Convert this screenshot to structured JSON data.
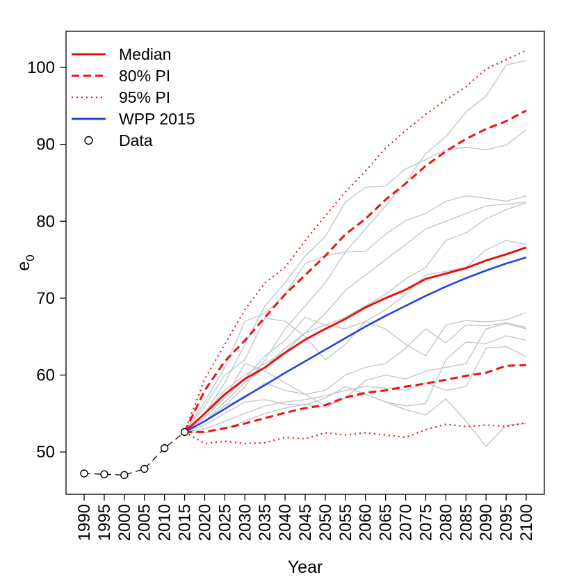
{
  "chart_data": {
    "type": "line",
    "title": "",
    "xlabel": "Year",
    "ylabel": "e",
    "ylabel_subscript": "0",
    "xlim": [
      1985.5,
      2104.5
    ],
    "ylim": [
      44.5,
      104.7
    ],
    "x_ticks": [
      1990,
      1995,
      2000,
      2005,
      2010,
      2015,
      2020,
      2025,
      2030,
      2035,
      2040,
      2045,
      2050,
      2055,
      2060,
      2065,
      2070,
      2075,
      2080,
      2085,
      2090,
      2095,
      2100
    ],
    "y_ticks": [
      50,
      60,
      70,
      80,
      90,
      100
    ],
    "legend_position": "top-left",
    "legend": [
      {
        "label": "Median",
        "style": "solid",
        "color": "#ee1111"
      },
      {
        "label": "80% PI",
        "style": "dashed",
        "color": "#ee1111"
      },
      {
        "label": "95% PI",
        "style": "dotted",
        "color": "#ee1111"
      },
      {
        "label": "WPP 2015",
        "style": "solid",
        "color": "#2244dd"
      },
      {
        "label": "Data",
        "style": "circle",
        "color": "#000000"
      }
    ],
    "data_points": {
      "x": [
        1990,
        1995,
        2000,
        2005,
        2010,
        2015
      ],
      "y": [
        47.2,
        47.1,
        47.0,
        47.8,
        50.5,
        52.6
      ]
    },
    "projection_x": [
      2015,
      2020,
      2025,
      2030,
      2035,
      2040,
      2045,
      2050,
      2055,
      2060,
      2065,
      2070,
      2075,
      2080,
      2085,
      2090,
      2095,
      2100
    ],
    "median": [
      52.6,
      55.0,
      57.5,
      59.5,
      61.0,
      62.9,
      64.6,
      66.0,
      67.3,
      68.8,
      70.0,
      71.1,
      72.5,
      73.2,
      73.9,
      74.9,
      75.7,
      76.6
    ],
    "wpp2015": [
      52.6,
      54.0,
      55.6,
      57.2,
      58.7,
      60.3,
      61.8,
      63.3,
      64.8,
      66.3,
      67.7,
      69.0,
      70.3,
      71.5,
      72.6,
      73.6,
      74.5,
      75.3
    ],
    "pi80_upper": [
      52.6,
      58.0,
      61.8,
      64.5,
      67.5,
      70.5,
      73.0,
      75.5,
      78.3,
      80.3,
      82.8,
      84.9,
      87.2,
      89.1,
      90.7,
      92.0,
      93.0,
      94.4
    ],
    "pi80_lower": [
      52.6,
      52.6,
      53.1,
      53.7,
      54.4,
      55.1,
      55.7,
      56.1,
      57.1,
      57.7,
      58.0,
      58.5,
      58.9,
      59.4,
      59.9,
      60.3,
      61.2,
      61.3
    ],
    "pi95_upper": [
      52.6,
      59.5,
      64.0,
      68.5,
      72.0,
      74.0,
      77.5,
      80.7,
      83.8,
      86.5,
      89.5,
      91.8,
      93.9,
      95.8,
      97.5,
      99.8,
      101.0,
      102.2
    ],
    "pi95_lower": [
      52.6,
      51.1,
      51.4,
      51.1,
      51.2,
      51.9,
      51.7,
      52.5,
      52.2,
      52.5,
      52.2,
      51.9,
      52.9,
      53.6,
      53.3,
      53.5,
      53.3,
      53.8
    ],
    "trajectories": [
      [
        52.6,
        55.0,
        59.0,
        64.0,
        69.0,
        72.0,
        75.5,
        78.0,
        82.5,
        84.4,
        84.6,
        86.8,
        88.0,
        89.3,
        89.6,
        89.3,
        89.9,
        91.9
      ],
      [
        52.6,
        54.0,
        56.0,
        58.5,
        62.0,
        66.0,
        69.0,
        72.0,
        76.0,
        79.0,
        82.0,
        85.0,
        88.8,
        91.0,
        94.2,
        96.3,
        100.3,
        100.9
      ],
      [
        52.6,
        56.5,
        61.0,
        67.0,
        68.0,
        70.5,
        74.5,
        75.5,
        76.0,
        76.1,
        78.3,
        80.1,
        81.0,
        82.6,
        83.3,
        83.0,
        82.6,
        83.3
      ],
      [
        52.6,
        55.0,
        58.0,
        60.0,
        61.5,
        63.0,
        65.5,
        68.0,
        71.0,
        73.0,
        75.0,
        77.0,
        79.0,
        80.0,
        81.0,
        82.0,
        82.2,
        82.5
      ],
      [
        52.6,
        54.0,
        56.5,
        59.0,
        61.0,
        63.5,
        65.5,
        66.5,
        67.5,
        69.0,
        70.5,
        72.5,
        74.0,
        77.5,
        78.5,
        80.3,
        81.5,
        82.4
      ],
      [
        52.6,
        54.5,
        57.0,
        59.5,
        62.5,
        64.5,
        67.5,
        66.5,
        66.0,
        67.0,
        68.5,
        70.5,
        73.0,
        73.5,
        74.0,
        76.3,
        77.5,
        77.0
      ],
      [
        52.6,
        56.0,
        60.0,
        62.0,
        67.4,
        67.0,
        65.0,
        62.0,
        64.0,
        67.0,
        66.0,
        64.0,
        62.5,
        66.5,
        67.1,
        66.9,
        67.2,
        68.1
      ],
      [
        52.6,
        55.0,
        57.0,
        61.5,
        60.5,
        59.0,
        57.5,
        58.0,
        60.0,
        61.0,
        61.5,
        63.5,
        66.0,
        64.2,
        66.5,
        66.4,
        66.8,
        66.2
      ],
      [
        52.6,
        54.0,
        56.0,
        57.0,
        59.0,
        58.0,
        57.5,
        56.0,
        57.0,
        59.3,
        60.0,
        59.5,
        60.5,
        61.0,
        61.5,
        66.0,
        66.7,
        66.0
      ],
      [
        52.6,
        53.5,
        55.0,
        56.5,
        56.8,
        56.2,
        56.1,
        57.0,
        58.5,
        57.5,
        56.5,
        56.0,
        56.3,
        62.0,
        64.3,
        64.1,
        65.1,
        64.5
      ],
      [
        52.6,
        53.0,
        54.0,
        55.0,
        56.0,
        56.5,
        56.8,
        57.3,
        58.0,
        58.5,
        58.3,
        58.0,
        59.0,
        58.0,
        58.5,
        63.5,
        63.7,
        62.4
      ],
      [
        52.6,
        52.5,
        53.0,
        54.0,
        55.0,
        55.7,
        56.2,
        55.8,
        57.0,
        57.5,
        56.5,
        55.5,
        54.8,
        56.9,
        54.0,
        50.7,
        53.5,
        53.7
      ]
    ]
  }
}
